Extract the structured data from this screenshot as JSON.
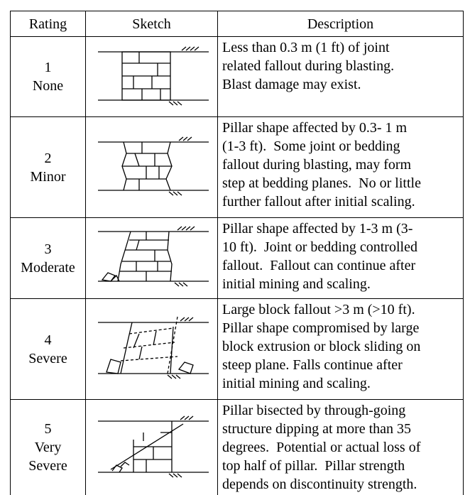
{
  "table": {
    "header": [
      "Rating",
      "Sketch",
      "Description"
    ],
    "rows": [
      {
        "rating": [
          "1",
          "None"
        ],
        "description": [
          "Less than 0.3 m (1 ft) of joint",
          "related fallout during blasting.",
          "Blast damage may exist."
        ]
      },
      {
        "rating": [
          "2",
          "Minor"
        ],
        "description": [
          "Pillar shape affected by 0.3- 1 m",
          "(1-3 ft).  Some joint or bedding",
          "fallout during blasting, may form",
          "step at bedding planes.  No or little",
          "further fallout after initial scaling."
        ]
      },
      {
        "rating": [
          "3",
          "Moderate"
        ],
        "description": [
          "Pillar shape affected by 1-3 m (3-",
          "10 ft).  Joint or bedding controlled",
          "fallout.  Fallout can continue after",
          "initial mining and scaling."
        ]
      },
      {
        "rating": [
          "4",
          "Severe"
        ],
        "description": [
          "Large block fallout >3 m (>10 ft).",
          "Pillar shape compromised by large",
          "block extrusion or block sliding on",
          "steep plane. Falls continue after",
          "initial mining and scaling."
        ]
      },
      {
        "rating": [
          "5",
          "Very",
          "Severe"
        ],
        "description": [
          "Pillar bisected by through-going",
          "structure dipping at more than 35",
          "degrees.  Potential or actual loss of",
          "top half of pillar.  Pillar strength",
          "depends on discontinuity strength."
        ]
      }
    ]
  }
}
